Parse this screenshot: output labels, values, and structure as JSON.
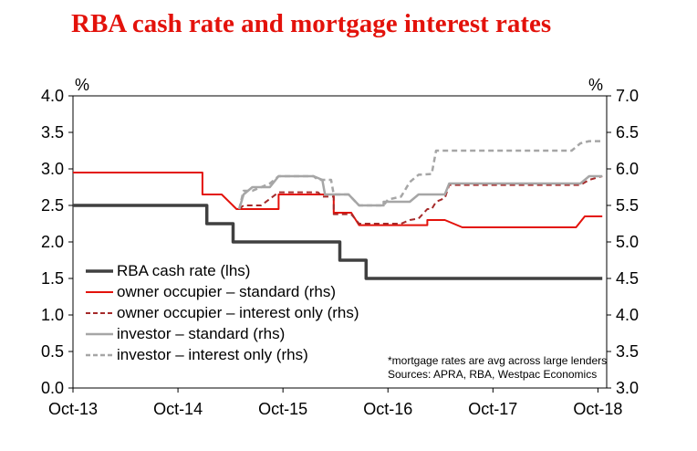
{
  "chart_data": {
    "type": "line",
    "title": "RBA cash rate and mortgage interest rates",
    "ylabel_left": "%",
    "ylabel_right": "%",
    "ylim_left": [
      0,
      4
    ],
    "ylim_right": [
      3,
      7
    ],
    "yticks_left": [
      "4.0",
      "3.5",
      "3.0",
      "2.5",
      "2.0",
      "1.5",
      "1.0",
      "0.5",
      "0.0"
    ],
    "yticks_right": [
      "7.0",
      "6.5",
      "6.0",
      "5.5",
      "5.0",
      "4.5",
      "4.0",
      "3.5",
      "3.0"
    ],
    "xticks": [
      "Oct-13",
      "Oct-14",
      "Oct-15",
      "Oct-16",
      "Oct-17",
      "Oct-18"
    ],
    "x_range_months": [
      0,
      61
    ],
    "series": [
      {
        "name": "RBA cash rate (lhs)",
        "axis": "left",
        "color": "#404040",
        "dash": "",
        "width": 3.5,
        "points": [
          [
            0,
            2.5
          ],
          [
            15.3,
            2.5
          ],
          [
            15.3,
            2.25
          ],
          [
            18.3,
            2.25
          ],
          [
            18.3,
            2.0
          ],
          [
            30.5,
            2.0
          ],
          [
            30.5,
            1.75
          ],
          [
            33.5,
            1.75
          ],
          [
            33.5,
            1.5
          ],
          [
            60.5,
            1.5
          ]
        ]
      },
      {
        "name": "owner occupier – standard (rhs)",
        "axis": "right",
        "color": "#e3120b",
        "dash": "",
        "width": 2,
        "points": [
          [
            0,
            5.95
          ],
          [
            14.8,
            5.95
          ],
          [
            14.8,
            5.65
          ],
          [
            17,
            5.65
          ],
          [
            18.7,
            5.45
          ],
          [
            23.5,
            5.45
          ],
          [
            23.5,
            5.65
          ],
          [
            29.8,
            5.65
          ],
          [
            29.8,
            5.4
          ],
          [
            31.8,
            5.4
          ],
          [
            32.7,
            5.23
          ],
          [
            40.5,
            5.23
          ],
          [
            40.5,
            5.3
          ],
          [
            42.5,
            5.3
          ],
          [
            44.5,
            5.2
          ],
          [
            57.5,
            5.2
          ],
          [
            58.5,
            5.35
          ],
          [
            60.5,
            5.35
          ]
        ]
      },
      {
        "name": "owner occupier – interest only (rhs)",
        "axis": "right",
        "color": "#a52a2a",
        "dash": "6,4",
        "width": 2,
        "points": [
          [
            19,
            5.45
          ],
          [
            19.5,
            5.5
          ],
          [
            21.5,
            5.5
          ],
          [
            23.5,
            5.68
          ],
          [
            28,
            5.68
          ],
          [
            28.5,
            5.62
          ],
          [
            29.8,
            5.62
          ],
          [
            29.8,
            5.38
          ],
          [
            31.8,
            5.38
          ],
          [
            32.7,
            5.25
          ],
          [
            37.5,
            5.25
          ],
          [
            38.5,
            5.3
          ],
          [
            39.5,
            5.32
          ],
          [
            40.5,
            5.45
          ],
          [
            41,
            5.45
          ],
          [
            41.5,
            5.55
          ],
          [
            42.5,
            5.6
          ],
          [
            43,
            5.78
          ],
          [
            58,
            5.78
          ],
          [
            59,
            5.85
          ],
          [
            60.5,
            5.9
          ]
        ]
      },
      {
        "name": "investor – standard (rhs)",
        "axis": "right",
        "color": "#a6a6a6",
        "dash": "",
        "width": 2.5,
        "points": [
          [
            19,
            5.45
          ],
          [
            19.5,
            5.65
          ],
          [
            20.5,
            5.75
          ],
          [
            22.5,
            5.75
          ],
          [
            23.5,
            5.9
          ],
          [
            27.5,
            5.9
          ],
          [
            28.5,
            5.85
          ],
          [
            28.8,
            5.65
          ],
          [
            31.5,
            5.65
          ],
          [
            32.7,
            5.5
          ],
          [
            35.5,
            5.5
          ],
          [
            35.5,
            5.55
          ],
          [
            38.5,
            5.55
          ],
          [
            39.5,
            5.65
          ],
          [
            42.5,
            5.65
          ],
          [
            43,
            5.8
          ],
          [
            58,
            5.8
          ],
          [
            59,
            5.9
          ],
          [
            60.5,
            5.9
          ]
        ]
      },
      {
        "name": "investor – interest only (rhs)",
        "axis": "right",
        "color": "#a6a6a6",
        "dash": "6,4",
        "width": 2.5,
        "points": [
          [
            19,
            5.45
          ],
          [
            19.5,
            5.7
          ],
          [
            20.5,
            5.7
          ],
          [
            22.5,
            5.8
          ],
          [
            23.5,
            5.9
          ],
          [
            27.5,
            5.9
          ],
          [
            28,
            5.85
          ],
          [
            29.5,
            5.85
          ],
          [
            29.8,
            5.65
          ],
          [
            31.5,
            5.65
          ],
          [
            32.7,
            5.5
          ],
          [
            35.5,
            5.5
          ],
          [
            36,
            5.58
          ],
          [
            37.5,
            5.62
          ],
          [
            38.5,
            5.82
          ],
          [
            39.5,
            5.92
          ],
          [
            41,
            5.93
          ],
          [
            41.5,
            6.25
          ],
          [
            57,
            6.25
          ],
          [
            58,
            6.35
          ],
          [
            59,
            6.38
          ],
          [
            60.5,
            6.38
          ]
        ]
      }
    ],
    "legend": [
      "RBA cash rate (lhs)",
      "owner occupier – standard (rhs)",
      "owner occupier – interest only (rhs)",
      "investor – standard (rhs)",
      "investor – interest only (rhs)"
    ],
    "legend_position": "bottom-left",
    "footnote": "*mortgage rates are avg across large lenders",
    "source": "Sources: APRA, RBA, Westpac Economics"
  }
}
